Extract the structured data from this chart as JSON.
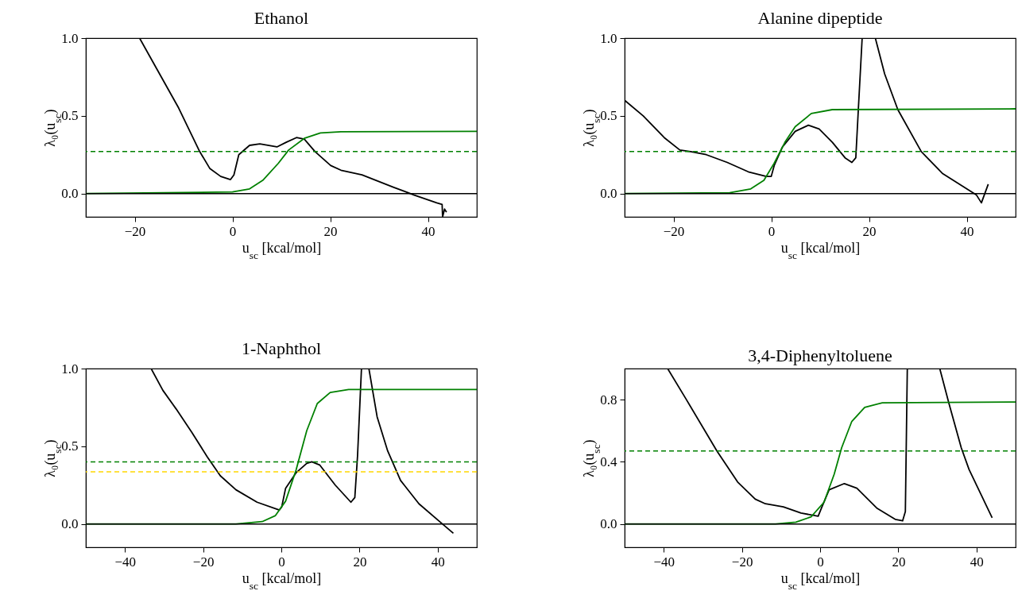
{
  "chart_data": [
    {
      "type": "line",
      "title": "Ethanol",
      "xlabel": "u$_{sc}$ [kcal/mol]",
      "ylabel": "λ₀(u$_{sc}$)",
      "xlim": [
        -30,
        50
      ],
      "ylim": [
        -0.15,
        1.0
      ],
      "xticks": [
        -20,
        0,
        20,
        40
      ],
      "yticks": [
        {
          "value": 0,
          "label": "0.0"
        },
        {
          "value": 0.5,
          "label": "0.5"
        },
        {
          "value": 1,
          "label": "1.0"
        }
      ],
      "grid": false,
      "legend": false,
      "series": [
        {
          "color": "#000000",
          "x": [
            -19.0,
            -15.8,
            -11.0,
            -6.7,
            -4.6,
            -2.4,
            -0.4,
            0.3,
            1.3,
            3.5,
            5.6,
            9.1,
            11.0,
            13.1,
            14.7,
            16.9,
            20.1,
            22.2,
            26.5,
            33.0,
            37.2,
            41.8,
            42.9,
            43.0,
            43.4,
            43.8
          ],
          "values": [
            1.0,
            0.82,
            0.55,
            0.27,
            0.16,
            0.11,
            0.09,
            0.12,
            0.25,
            0.31,
            0.32,
            0.3,
            0.33,
            0.36,
            0.35,
            0.27,
            0.18,
            0.15,
            0.12,
            0.04,
            -0.01,
            -0.06,
            -0.07,
            -0.15,
            -0.1,
            -0.12
          ]
        },
        {
          "color": "#008000",
          "x": [
            -30,
            0,
            3.5,
            6.2,
            9.4,
            11.5,
            14.7,
            18,
            22.2,
            50
          ],
          "values": [
            0,
            0.01,
            0.03,
            0.085,
            0.195,
            0.28,
            0.355,
            0.39,
            0.398,
            0.4
          ]
        }
      ],
      "ref_lines": [
        {
          "axis": "y",
          "value": 0.27,
          "color": "#008000",
          "line_style": "dashed"
        },
        {
          "axis": "y",
          "value": 0,
          "color": "#000000",
          "line_style": "solid"
        }
      ]
    },
    {
      "type": "line",
      "title": "Alanine dipeptide",
      "xlabel": "u$_{sc}$ [kcal/mol]",
      "ylabel": "λ₀(u$_{sc}$)",
      "xlim": [
        -30,
        50
      ],
      "ylim": [
        -0.15,
        1.0
      ],
      "xticks": [
        -20,
        0,
        20,
        40
      ],
      "yticks": [
        {
          "value": 0,
          "label": "0.0"
        },
        {
          "value": 0.5,
          "label": "0.5"
        },
        {
          "value": 1,
          "label": "1.0"
        }
      ],
      "grid": false,
      "legend": false,
      "series": [
        {
          "color": "#000000",
          "x": [
            -30,
            -26.2,
            -21.9,
            -18.7,
            -16.5,
            -13.3,
            -9.0,
            -4.7,
            -1.0,
            0,
            0.6,
            2.3,
            4.9,
            7.6,
            9.8,
            12.5,
            15.1,
            16.5,
            17.3,
            17.8,
            18.6,
            20,
            21.3,
            23.2,
            25.9,
            30.7,
            35.0,
            42.0,
            43.0,
            44.4
          ],
          "values": [
            0.6,
            0.5,
            0.36,
            0.28,
            0.27,
            0.25,
            0.2,
            0.14,
            0.11,
            0.11,
            0.18,
            0.3,
            0.4,
            0.44,
            0.415,
            0.33,
            0.23,
            0.2,
            0.23,
            0.53,
            1.0,
            null,
            1.0,
            0.77,
            0.54,
            0.27,
            0.13,
            -0.01,
            -0.06,
            0.06
          ]
        },
        {
          "color": "#008000",
          "x": [
            -30,
            -8.5,
            -4.2,
            -1.5,
            0.6,
            2.8,
            4.9,
            8.2,
            12.5,
            50
          ],
          "values": [
            0,
            0.005,
            0.03,
            0.085,
            0.195,
            0.33,
            0.43,
            0.515,
            0.54,
            0.545
          ]
        }
      ],
      "ref_lines": [
        {
          "axis": "y",
          "value": 0.27,
          "color": "#008000",
          "line_style": "dashed"
        },
        {
          "axis": "y",
          "value": 0,
          "color": "#000000",
          "line_style": "solid"
        }
      ]
    },
    {
      "type": "line",
      "title": "1-Naphthol",
      "xlabel": "u$_{sc}$ [kcal/mol]",
      "ylabel": "λ₀(u$_{sc}$)",
      "xlim": [
        -50,
        50
      ],
      "ylim": [
        -0.15,
        1.0
      ],
      "xticks": [
        -40,
        -20,
        0,
        20,
        40
      ],
      "yticks": [
        {
          "value": 0,
          "label": "0.0"
        },
        {
          "value": 0.5,
          "label": "0.5"
        },
        {
          "value": 1,
          "label": "1.0"
        }
      ],
      "grid": false,
      "legend": false,
      "series": [
        {
          "color": "#000000",
          "x": [
            -33.3,
            -30.3,
            -26.9,
            -22.9,
            -18.9,
            -15.6,
            -11.6,
            -6.2,
            -0.5,
            0.1,
            1.1,
            3.8,
            6.5,
            7.8,
            9.8,
            13.8,
            17.8,
            18.8,
            19.5,
            20.5,
            21.5,
            22.4,
            24.5,
            27.2,
            30.5,
            35.2,
            41.2,
            44.0
          ],
          "values": [
            1.0,
            0.86,
            0.74,
            0.59,
            0.43,
            0.31,
            0.22,
            0.14,
            0.09,
            0.11,
            0.23,
            0.33,
            0.39,
            0.4,
            0.38,
            0.25,
            0.14,
            0.17,
            0.44,
            1.0,
            null,
            1.0,
            0.69,
            0.47,
            0.28,
            0.13,
            0.0,
            -0.06
          ]
        },
        {
          "color": "#008000",
          "x": [
            -50,
            -11.6,
            -4.9,
            -1.5,
            1.1,
            3.8,
            6.5,
            9.2,
            12.5,
            17.2,
            50
          ],
          "values": [
            0,
            0,
            0.015,
            0.054,
            0.147,
            0.35,
            0.6,
            0.775,
            0.846,
            0.865,
            0.865
          ]
        }
      ],
      "ref_lines": [
        {
          "axis": "y",
          "value": 0.4,
          "color": "#008000",
          "line_style": "dashed"
        },
        {
          "axis": "y",
          "value": 0.335,
          "color": "#ffd700",
          "line_style": "dashed"
        },
        {
          "axis": "y",
          "value": 0,
          "color": "#000000",
          "line_style": "solid"
        }
      ]
    },
    {
      "type": "line",
      "title": "3,4-Diphenyltoluene",
      "xlabel": "u$_{sc}$ [kcal/mol]",
      "ylabel": "λ₀(u$_{sc}$)",
      "xlim": [
        -50,
        50
      ],
      "ylim": [
        -0.15,
        1.0
      ],
      "xticks": [
        -40,
        -20,
        0,
        20,
        40
      ],
      "yticks": [
        {
          "value": 0,
          "label": "0.0"
        },
        {
          "value": 0.4,
          "label": "0.4"
        },
        {
          "value": 0.8,
          "label": "0.8"
        }
      ],
      "grid": false,
      "legend": false,
      "series": [
        {
          "color": "#000000",
          "x": [
            -39.0,
            -34.2,
            -26.4,
            -21.1,
            -16.6,
            -14.0,
            -9.4,
            -4.9,
            -0.5,
            0.3,
            2.3,
            6.2,
            9.4,
            14.6,
            19.2,
            21.1,
            21.8,
            22.3,
            26,
            30.6,
            32.9,
            36.1,
            38.1,
            44.0
          ],
          "values": [
            1.0,
            0.8,
            0.47,
            0.27,
            0.16,
            0.13,
            0.11,
            0.07,
            0.05,
            0.1,
            0.22,
            0.26,
            0.23,
            0.1,
            0.03,
            0.02,
            0.08,
            1.0,
            null,
            1.0,
            0.78,
            0.49,
            0.35,
            0.04
          ]
        },
        {
          "color": "#008000",
          "x": [
            -50,
            -11.4,
            -6.2,
            -2.3,
            1.0,
            3.6,
            5.5,
            8.1,
            11.4,
            15.9,
            50
          ],
          "values": [
            0,
            0,
            0.012,
            0.046,
            0.14,
            0.32,
            0.49,
            0.66,
            0.75,
            0.78,
            0.785
          ]
        }
      ],
      "ref_lines": [
        {
          "axis": "y",
          "value": 0.47,
          "color": "#008000",
          "line_style": "dashed"
        },
        {
          "axis": "y",
          "value": 0,
          "color": "#000000",
          "line_style": "solid"
        }
      ]
    }
  ]
}
